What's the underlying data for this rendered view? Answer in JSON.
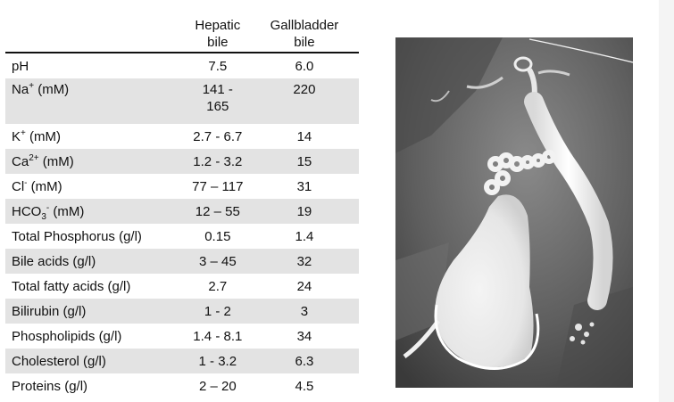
{
  "table": {
    "headers": {
      "parameter": "",
      "hepatic": "Hepatic\nbile",
      "gallbladder": "Gallbladder\nbile"
    },
    "rows": [
      {
        "label": "pH",
        "hepatic": "7.5",
        "gallbladder": "6.0"
      },
      {
        "label_main": "Na",
        "label_sup": "+",
        "label_rest": " (mM)",
        "hepatic": "141 -\n165",
        "gallbladder": "220"
      },
      {
        "label_main": "K",
        "label_sup": "+",
        "label_rest": " (mM)",
        "hepatic": "2.7 - 6.7",
        "gallbladder": "14"
      },
      {
        "label_main": "Ca",
        "label_sup": "2+",
        "label_rest": " (mM)",
        "hepatic": "1.2 - 3.2",
        "gallbladder": "15"
      },
      {
        "label_main": "Cl",
        "label_sup": "-",
        "label_rest": " (mM)",
        "hepatic": "77 – 117",
        "gallbladder": "31"
      },
      {
        "label_main": "HCO",
        "label_sub": "3",
        "label_sup": "-",
        "label_rest": " (mM)",
        "hepatic": "12 – 55",
        "gallbladder": "19"
      },
      {
        "label": "Total Phosphorus (g/l)",
        "hepatic": "0.15",
        "gallbladder": "1.4"
      },
      {
        "label": "Bile acids (g/l)",
        "hepatic": "3 – 45",
        "gallbladder": "32"
      },
      {
        "label": "Total fatty acids (g/l)",
        "hepatic": "2.7",
        "gallbladder": "24"
      },
      {
        "label": "Bilirubin (g/l)",
        "hepatic": "1 - 2",
        "gallbladder": "3"
      },
      {
        "label": "Phospholipids (g/l)",
        "hepatic": "1.4 - 8.1",
        "gallbladder": "34"
      },
      {
        "label": "Cholesterol (g/l)",
        "hepatic": "1 - 3.2",
        "gallbladder": "6.3"
      },
      {
        "label": "Proteins (g/l)",
        "hepatic": "2 – 20",
        "gallbladder": "4.5"
      }
    ]
  },
  "colors": {
    "row_shade": "#e3e3e3",
    "rule": "#111111"
  },
  "image": {
    "subject": "cholangiogram-xray"
  }
}
